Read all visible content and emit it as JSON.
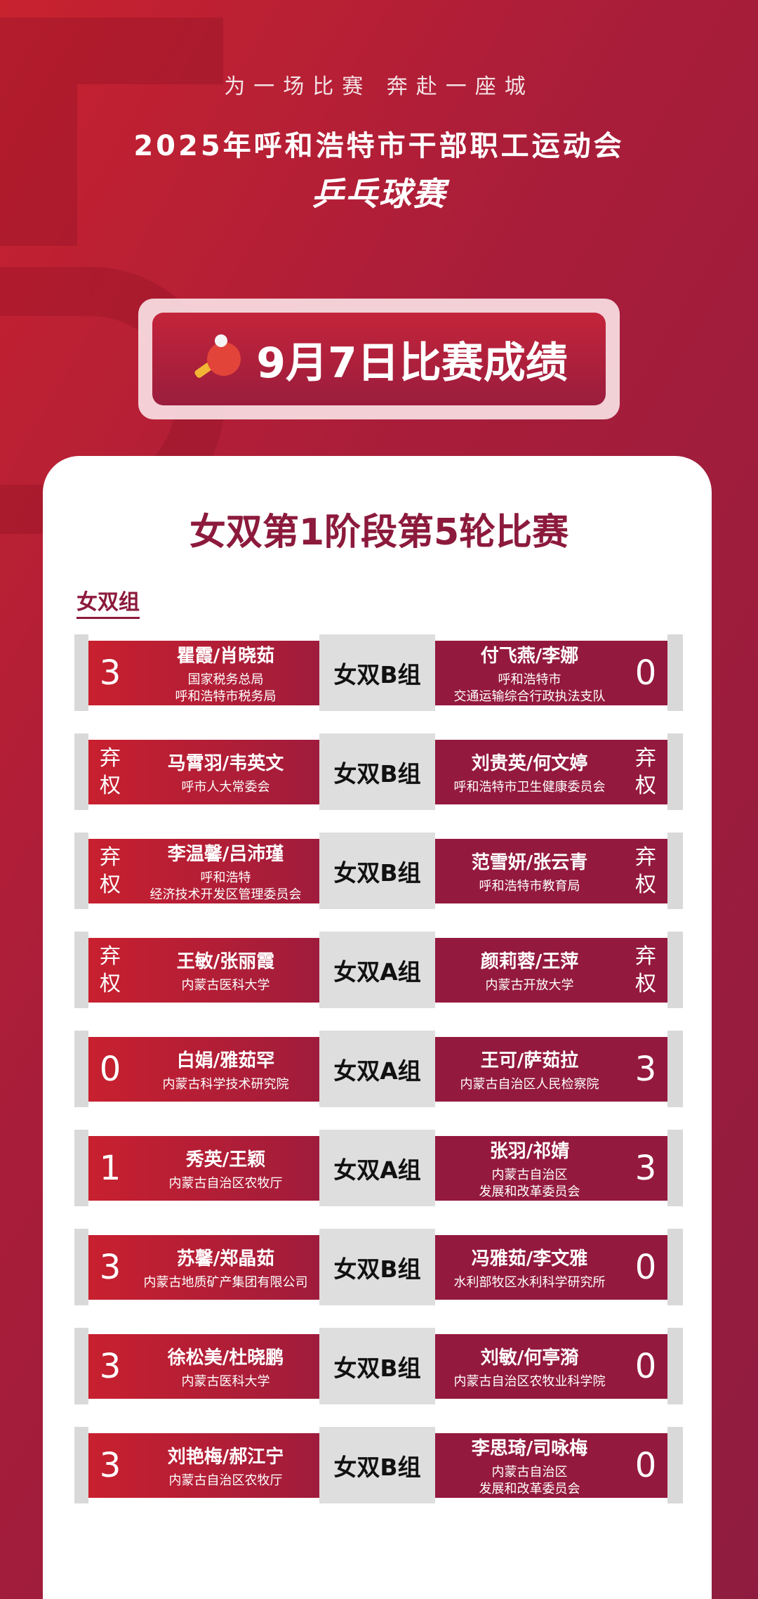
{
  "header": {
    "tagline": "为一场比赛  奔赴一座城",
    "title": "2025年呼和浩特市干部职工运动会",
    "subtitle": "乒乓球赛"
  },
  "banner": {
    "icon": "ping-pong-paddle-icon",
    "text": "9月7日比赛成绩"
  },
  "card": {
    "title": "女双第1阶段第5轮比赛",
    "group_label": "女双组"
  },
  "colors": {
    "accent": "#8c1a3c",
    "left_red": "#c8202f",
    "right_red": "#94193f"
  },
  "matches": [
    {
      "left_score": "3",
      "left_names": "瞿霞/肖晓茹",
      "left_org": "国家税务总局\n呼和浩特市税务局",
      "group": "女双B组",
      "right_names": "付飞燕/李娜",
      "right_org": "呼和浩特市\n交通运输综合行政执法支队",
      "right_score": "0"
    },
    {
      "left_score": "弃\n权",
      "left_names": "马霄羽/韦英文",
      "left_org": "呼市人大常委会",
      "group": "女双B组",
      "right_names": "刘贵英/何文婷",
      "right_org": "呼和浩特市卫生健康委员会",
      "right_score": "弃\n权"
    },
    {
      "left_score": "弃\n权",
      "left_names": "李温馨/吕沛瑾",
      "left_org": "呼和浩特\n经济技术开发区管理委员会",
      "group": "女双B组",
      "right_names": "范雪妍/张云青",
      "right_org": "呼和浩特市教育局",
      "right_score": "弃\n权"
    },
    {
      "left_score": "弃\n权",
      "left_names": "王敏/张丽霞",
      "left_org": "内蒙古医科大学",
      "group": "女双A组",
      "right_names": "颜莉蓉/王萍",
      "right_org": "内蒙古开放大学",
      "right_score": "弃\n权"
    },
    {
      "left_score": "0",
      "left_names": "白娟/雅茹罕",
      "left_org": "内蒙古科学技术研究院",
      "group": "女双A组",
      "right_names": "王可/萨茹拉",
      "right_org": "内蒙古自治区人民检察院",
      "right_score": "3"
    },
    {
      "left_score": "1",
      "left_names": "秀英/王颖",
      "left_org": "内蒙古自治区农牧厅",
      "group": "女双A组",
      "right_names": "张羽/祁婧",
      "right_org": "内蒙古自治区\n发展和改革委员会",
      "right_score": "3"
    },
    {
      "left_score": "3",
      "left_names": "苏馨/郑晶茹",
      "left_org": "内蒙古地质矿产集团有限公司",
      "group": "女双B组",
      "right_names": "冯雅茹/李文雅",
      "right_org": "水利部牧区水利科学研究所",
      "right_score": "0"
    },
    {
      "left_score": "3",
      "left_names": "徐松美/杜晓鹏",
      "left_org": "内蒙古医科大学",
      "group": "女双B组",
      "right_names": "刘敏/何亭漪",
      "right_org": "内蒙古自治区农牧业科学院",
      "right_score": "0"
    },
    {
      "left_score": "3",
      "left_names": "刘艳梅/郝江宁",
      "left_org": "内蒙古自治区农牧厅",
      "group": "女双B组",
      "right_names": "李思琦/司咏梅",
      "right_org": "内蒙古自治区\n发展和改革委员会",
      "right_score": "0"
    }
  ]
}
